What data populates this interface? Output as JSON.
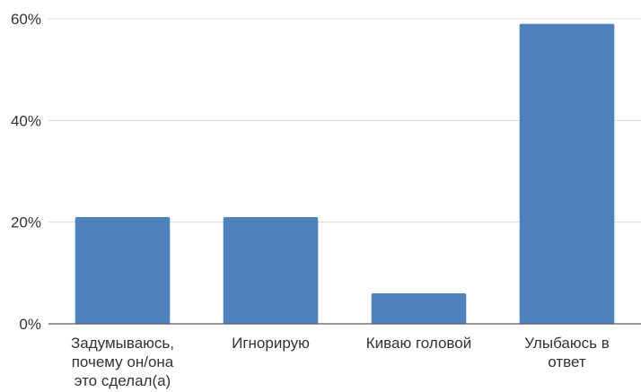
{
  "chart_data": {
    "type": "bar",
    "categories": [
      [
        "Задумываюсь,",
        "почему он/она",
        "это сделал(а)"
      ],
      [
        "Игнорирую"
      ],
      [
        "Киваю головой"
      ],
      [
        "Улыбаюсь в",
        "ответ"
      ]
    ],
    "values": [
      21,
      21,
      6,
      59
    ],
    "ylim": [
      0,
      60
    ],
    "yticks": [
      0,
      20,
      40,
      60
    ],
    "ytick_labels": [
      "0%",
      "20%",
      "40%",
      "60%"
    ],
    "bar_color": "#4f81bd",
    "grid": true
  }
}
